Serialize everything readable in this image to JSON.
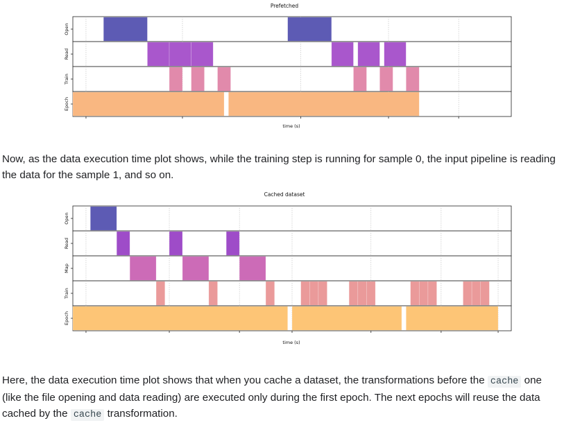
{
  "charts": [
    {
      "title": "Prefetched",
      "xlabel": "time (s)",
      "type": "timeline",
      "tracks": [
        "Open",
        "Read",
        "Train",
        "Epoch"
      ],
      "colors": {
        "Open": "#5d5bb4",
        "Read": "#a957cc",
        "Train": "#e18aab",
        "Epoch": "#f9b781"
      },
      "xlim": [
        0,
        100
      ],
      "ticks": [
        3,
        25,
        52,
        72,
        88
      ],
      "bars": {
        "Open": [
          [
            7,
            17
          ],
          [
            49,
            59
          ]
        ],
        "Read": [
          [
            17,
            22
          ],
          [
            22,
            27
          ],
          [
            27,
            32
          ],
          [
            59,
            64
          ],
          [
            65,
            70
          ],
          [
            71,
            76
          ]
        ],
        "Train": [
          [
            22,
            25
          ],
          [
            27,
            30
          ],
          [
            33,
            36
          ],
          [
            64,
            67
          ],
          [
            70,
            73
          ],
          [
            76,
            79
          ]
        ],
        "Epoch": [
          [
            0,
            34.5
          ],
          [
            35.5,
            79
          ]
        ]
      }
    },
    {
      "title": "Cached dataset",
      "xlabel": "time (s)",
      "type": "timeline",
      "tracks": [
        "Open",
        "Read",
        "Map",
        "Train",
        "Epoch"
      ],
      "colors": {
        "Open": "#5d5bb4",
        "Read": "#9e4cc8",
        "Map": "#cc6bb7",
        "Train": "#ea9a9a",
        "Epoch": "#fdc576"
      },
      "xlim": [
        0,
        100
      ],
      "ticks": [
        3,
        22,
        38,
        50,
        68,
        84,
        97
      ],
      "bars": {
        "Open": [
          [
            4,
            10
          ]
        ],
        "Read": [
          [
            10,
            13
          ],
          [
            22,
            25
          ],
          [
            35,
            38
          ]
        ],
        "Map": [
          [
            13,
            19
          ],
          [
            25,
            31
          ],
          [
            38,
            44
          ]
        ],
        "Train": [
          [
            19,
            21
          ],
          [
            31,
            33
          ],
          [
            44,
            46
          ],
          [
            52,
            54
          ],
          [
            54,
            56
          ],
          [
            56,
            58
          ],
          [
            63,
            65
          ],
          [
            65,
            67
          ],
          [
            67,
            69
          ],
          [
            77,
            79
          ],
          [
            79,
            81
          ],
          [
            81,
            83
          ],
          [
            89,
            91
          ],
          [
            91,
            93
          ],
          [
            93,
            95
          ]
        ],
        "Epoch": [
          [
            0,
            49
          ],
          [
            50,
            75
          ],
          [
            76,
            97
          ]
        ]
      }
    }
  ],
  "paragraph1": "Now, as the data execution time plot shows, while the training step is running for sample 0, the input pipeline is reading the data for the sample 1, and so on.",
  "paragraph2": {
    "part1": "Here, the data execution time plot shows that when you cache a dataset, the transformations before the",
    "code1": "cache",
    "part2": "one (like the file opening and data reading) are executed only during the first epoch. The next epochs will reuse the data cached by the",
    "code2": "cache",
    "part3": "transformation."
  }
}
